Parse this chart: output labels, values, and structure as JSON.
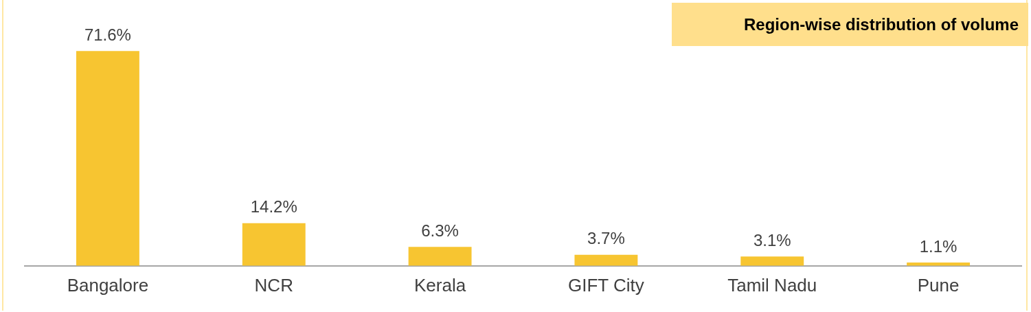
{
  "chart_data": {
    "type": "bar",
    "title": "Region-wise distribution of volume",
    "categories": [
      "Bangalore",
      "NCR",
      "Kerala",
      "GIFT City",
      "Tamil Nadu",
      "Pune"
    ],
    "values": [
      71.6,
      14.2,
      6.3,
      3.7,
      3.1,
      1.1
    ],
    "value_labels": [
      "71.6%",
      "14.2%",
      "6.3%",
      "3.7%",
      "3.1%",
      "1.1%"
    ],
    "color": "#f7c531",
    "grid": false,
    "legend": false
  }
}
